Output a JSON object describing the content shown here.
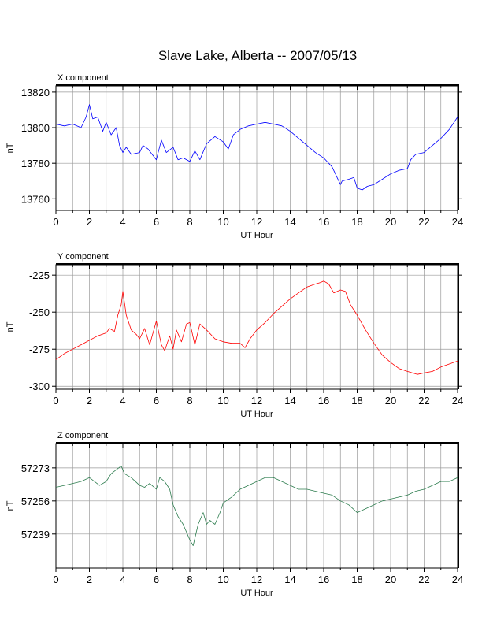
{
  "title": "Slave Lake, Alberta -- 2007/05/13",
  "chart_data": [
    {
      "type": "line",
      "panel_label": "X component",
      "xlabel": "UT Hour",
      "ylabel": "nT",
      "xlim": [
        0,
        24
      ],
      "ylim": [
        13753.5,
        13823.5
      ],
      "x_ticks": [
        0,
        2,
        4,
        6,
        8,
        10,
        12,
        14,
        16,
        18,
        20,
        22,
        24
      ],
      "y_ticks": [
        13760,
        13780,
        13800,
        13820
      ],
      "grid": true,
      "color": "#0000ff",
      "x": [
        0,
        0.5,
        1,
        1.5,
        1.8,
        2,
        2.2,
        2.5,
        2.8,
        3,
        3.3,
        3.6,
        3.8,
        4,
        4.2,
        4.5,
        5,
        5.2,
        5.5,
        6,
        6.3,
        6.6,
        7,
        7.3,
        7.6,
        8,
        8.3,
        8.6,
        9,
        9.5,
        10,
        10.3,
        10.6,
        11,
        11.5,
        12,
        12.5,
        13,
        13.5,
        14,
        14.5,
        15,
        15.5,
        16,
        16.5,
        17,
        17.1,
        17.5,
        17.8,
        18,
        18.3,
        18.6,
        19,
        19.5,
        20,
        20.5,
        21,
        21.2,
        21.5,
        22,
        22.5,
        23,
        23.5,
        24
      ],
      "y": [
        13802,
        13801,
        13802,
        13800,
        13806,
        13813,
        13805,
        13806,
        13798,
        13803,
        13796,
        13800,
        13790,
        13786,
        13789,
        13785,
        13786,
        13790,
        13788,
        13782,
        13793,
        13786,
        13789,
        13782,
        13783,
        13781,
        13787,
        13782,
        13791,
        13795,
        13792,
        13788,
        13796,
        13799,
        13801,
        13802,
        13803,
        13802,
        13801,
        13798,
        13794,
        13790,
        13786,
        13783,
        13778,
        13768,
        13770,
        13771,
        13772,
        13766,
        13765,
        13767,
        13768,
        13771,
        13774,
        13776,
        13777,
        13782,
        13785,
        13786,
        13790,
        13794,
        13799,
        13806
      ]
    },
    {
      "type": "line",
      "panel_label": "Y component",
      "xlabel": "UT Hour",
      "ylabel": "nT",
      "xlim": [
        0,
        24
      ],
      "ylim": [
        -302,
        -218
      ],
      "x_ticks": [
        0,
        2,
        4,
        6,
        8,
        10,
        12,
        14,
        16,
        18,
        20,
        22,
        24
      ],
      "y_ticks": [
        -300,
        -275,
        -250,
        -225
      ],
      "grid": true,
      "color": "#ff0000",
      "x": [
        0,
        0.5,
        1,
        1.5,
        2,
        2.5,
        3,
        3.2,
        3.5,
        3.7,
        3.9,
        4,
        4.2,
        4.5,
        4.8,
        5,
        5.3,
        5.6,
        6,
        6.3,
        6.5,
        6.8,
        7,
        7.2,
        7.5,
        7.8,
        8,
        8.3,
        8.6,
        9,
        9.5,
        10,
        10.5,
        11,
        11.3,
        11.6,
        12,
        12.5,
        13,
        13.5,
        14,
        14.5,
        15,
        15.5,
        15.8,
        16,
        16.3,
        16.6,
        17,
        17.3,
        17.6,
        18,
        18.5,
        19,
        19.5,
        20,
        20.5,
        21,
        21.3,
        21.6,
        22,
        22.5,
        23,
        23.5,
        24
      ],
      "y": [
        -282,
        -278,
        -275,
        -272,
        -269,
        -266,
        -264,
        -261,
        -263,
        -252,
        -245,
        -236,
        -252,
        -262,
        -265,
        -268,
        -261,
        -272,
        -256,
        -272,
        -276,
        -266,
        -275,
        -262,
        -270,
        -258,
        -257,
        -272,
        -258,
        -262,
        -268,
        -270,
        -271,
        -271,
        -274,
        -268,
        -262,
        -257,
        -251,
        -246,
        -241,
        -237,
        -233,
        -231,
        -230,
        -229,
        -231,
        -237,
        -235,
        -236,
        -245,
        -252,
        -262,
        -271,
        -279,
        -284,
        -288,
        -290,
        -291,
        -292,
        -291,
        -290,
        -287,
        -285,
        -283
      ]
    },
    {
      "type": "line",
      "panel_label": "Z component",
      "xlabel": "UT Hour",
      "ylabel": "nT",
      "xlim": [
        0,
        24
      ],
      "ylim": [
        57221.5,
        57285.5
      ],
      "x_ticks": [
        0,
        2,
        4,
        6,
        8,
        10,
        12,
        14,
        16,
        18,
        20,
        22,
        24
      ],
      "y_ticks": [
        57239,
        57256,
        57273
      ],
      "grid": true,
      "color": "#2e7d4f",
      "x": [
        0,
        0.5,
        1,
        1.5,
        2,
        2.3,
        2.6,
        3,
        3.3,
        3.6,
        3.9,
        4.1,
        4.5,
        5,
        5.3,
        5.6,
        6,
        6.2,
        6.5,
        6.8,
        7,
        7.3,
        7.6,
        8,
        8.2,
        8.5,
        8.8,
        9,
        9.2,
        9.5,
        9.8,
        10,
        10.5,
        11,
        11.5,
        12,
        12.5,
        13,
        13.5,
        14,
        14.5,
        15,
        15.5,
        16,
        16.5,
        17,
        17.5,
        18,
        18.5,
        19,
        19.5,
        20,
        20.5,
        21,
        21.5,
        22,
        22.5,
        23,
        23.5,
        24
      ],
      "y": [
        57263,
        57264,
        57265,
        57266,
        57268,
        57266,
        57264,
        57266,
        57270,
        57272,
        57274,
        57270,
        57268,
        57264,
        57263,
        57265,
        57262,
        57268,
        57266,
        57262,
        57254,
        57248,
        57244,
        57236,
        57233,
        57244,
        57250,
        57244,
        57246,
        57244,
        57250,
        57255,
        57258,
        57262,
        57264,
        57266,
        57268,
        57268,
        57266,
        57264,
        57262,
        57262,
        57261,
        57260,
        57259,
        57256,
        57254,
        57250,
        57252,
        57254,
        57256,
        57257,
        57258,
        57259,
        57261,
        57262,
        57264,
        57266,
        57266,
        57268
      ]
    }
  ]
}
